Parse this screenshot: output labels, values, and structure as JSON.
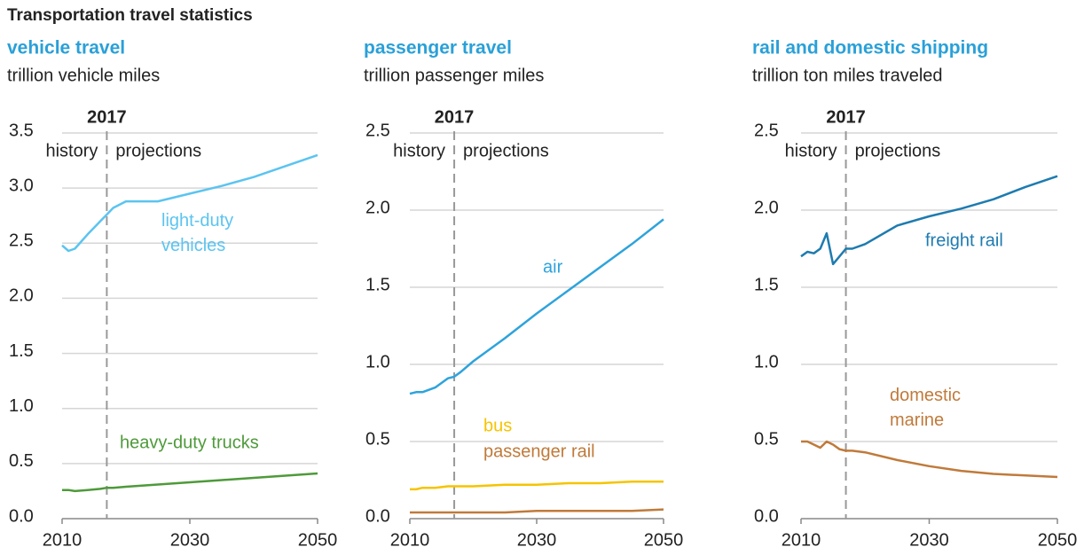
{
  "title": "Transportation travel statistics",
  "chart_data": [
    {
      "type": "line",
      "title": "vehicle travel",
      "subtitle": "trillion vehicle miles",
      "marker": {
        "x": 2017,
        "label": "2017",
        "left": "history",
        "right": "projections"
      },
      "x": [
        2010,
        2011,
        2012,
        2014,
        2016,
        2017,
        2018,
        2020,
        2025,
        2030,
        2035,
        2040,
        2045,
        2050
      ],
      "xlim": [
        2010,
        2050
      ],
      "xticks": [
        2010,
        2030,
        2050
      ],
      "ylim": [
        0,
        3.5
      ],
      "yticks": [
        {
          "value": 0,
          "label": "0.0"
        },
        0.5,
        {
          "value": 1,
          "label": "1.0"
        },
        1.5,
        {
          "value": 2,
          "label": "2.0"
        },
        2.5,
        {
          "value": 3,
          "label": "3.0"
        },
        3.5
      ],
      "grid": true,
      "series": [
        {
          "name": "light-duty vehicles",
          "color": "#5bc4f0",
          "values": [
            2.48,
            2.43,
            2.45,
            2.58,
            2.7,
            2.76,
            2.82,
            2.88,
            2.88,
            2.95,
            3.02,
            3.1,
            3.2,
            3.3
          ]
        },
        {
          "name": "heavy-duty trucks",
          "color": "#4e9a3a",
          "values": [
            0.26,
            0.26,
            0.25,
            0.26,
            0.27,
            0.28,
            0.28,
            0.29,
            0.31,
            0.33,
            0.35,
            0.37,
            0.39,
            0.41
          ]
        }
      ]
    },
    {
      "type": "line",
      "title": "passenger travel",
      "subtitle": "trillion passenger miles",
      "marker": {
        "x": 2017,
        "label": "2017",
        "left": "history",
        "right": "projections"
      },
      "x": [
        2010,
        2011,
        2012,
        2014,
        2016,
        2017,
        2018,
        2020,
        2025,
        2030,
        2035,
        2040,
        2045,
        2050
      ],
      "xlim": [
        2010,
        2050
      ],
      "xticks": [
        2010,
        2030,
        2050
      ],
      "ylim": [
        0,
        2.5
      ],
      "yticks": [
        {
          "value": 0,
          "label": "0.0"
        },
        0.5,
        {
          "value": 1,
          "label": "1.0"
        },
        1.5,
        {
          "value": 2,
          "label": "2.0"
        },
        2.5
      ],
      "grid": true,
      "series": [
        {
          "name": "air",
          "color": "#2ea3dc",
          "values": [
            0.81,
            0.82,
            0.82,
            0.85,
            0.91,
            0.92,
            0.95,
            1.02,
            1.17,
            1.33,
            1.48,
            1.63,
            1.78,
            1.94
          ]
        },
        {
          "name": "bus",
          "color": "#f5c400",
          "values": [
            0.19,
            0.19,
            0.2,
            0.2,
            0.21,
            0.21,
            0.21,
            0.21,
            0.22,
            0.22,
            0.23,
            0.23,
            0.24,
            0.24
          ]
        },
        {
          "name": "passenger rail",
          "color": "#c07a3a",
          "values": [
            0.04,
            0.04,
            0.04,
            0.04,
            0.04,
            0.04,
            0.04,
            0.04,
            0.04,
            0.05,
            0.05,
            0.05,
            0.05,
            0.06
          ]
        }
      ]
    },
    {
      "type": "line",
      "title": "rail and domestic shipping",
      "subtitle": "trillion ton miles traveled",
      "marker": {
        "x": 2017,
        "label": "2017",
        "left": "history",
        "right": "projections"
      },
      "x": [
        2010,
        2011,
        2012,
        2013,
        2014,
        2015,
        2016,
        2017,
        2018,
        2020,
        2025,
        2030,
        2035,
        2040,
        2045,
        2050
      ],
      "xlim": [
        2010,
        2050
      ],
      "xticks": [
        2010,
        2030,
        2050
      ],
      "ylim": [
        0,
        2.5
      ],
      "yticks": [
        {
          "value": 0,
          "label": "0.0"
        },
        0.5,
        {
          "value": 1,
          "label": "1.0"
        },
        1.5,
        {
          "value": 2,
          "label": "2.0"
        },
        2.5
      ],
      "grid": true,
      "series": [
        {
          "name": "freight rail",
          "color": "#1e7bb0",
          "values": [
            1.7,
            1.73,
            1.72,
            1.75,
            1.85,
            1.65,
            1.7,
            1.75,
            1.75,
            1.78,
            1.9,
            1.96,
            2.01,
            2.07,
            2.15,
            2.22
          ]
        },
        {
          "name": "domestic marine",
          "color": "#c07a3a",
          "values": [
            0.5,
            0.5,
            0.48,
            0.46,
            0.5,
            0.48,
            0.45,
            0.44,
            0.44,
            0.43,
            0.38,
            0.34,
            0.31,
            0.29,
            0.28,
            0.27
          ]
        }
      ]
    }
  ]
}
